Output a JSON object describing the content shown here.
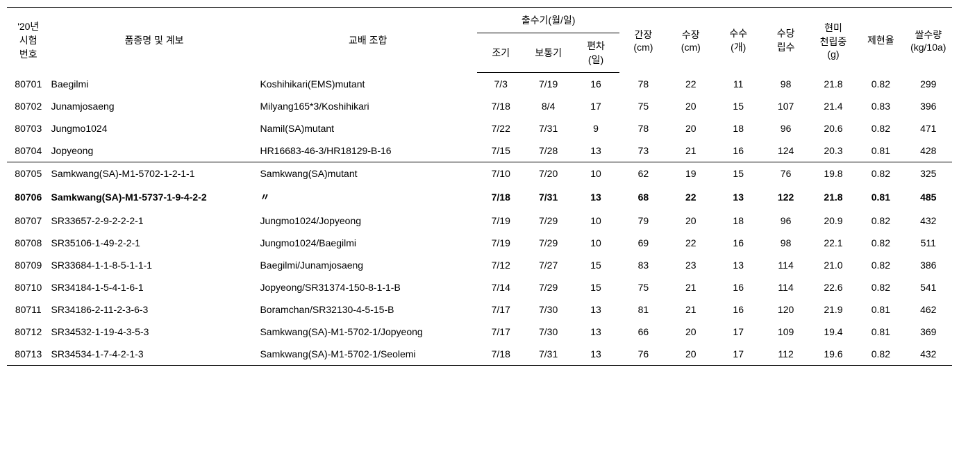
{
  "headers": {
    "trial_num": "'20년\n시험\n번호",
    "variety_name": "품종명 및 계보",
    "cross_combination": "교배 조합",
    "heading_date": "출수기(월/일)",
    "early": "조기",
    "normal": "보통기",
    "deviation": "편차\n(일)",
    "culm_length": "간장\n(cm)",
    "panicle_length": "수장\n(cm)",
    "panicle_num": "수수\n(개)",
    "grain_per_panicle": "수당\n립수",
    "brown_rice_weight": "현미\n천립중\n(g)",
    "milling_ratio": "제현율",
    "rice_yield": "쌀수량\n(kg/10a)"
  },
  "rows": [
    {
      "num": "80701",
      "name": "Baegilmi",
      "cross": "Koshihikari(EMS)mutant",
      "early": "7/3",
      "normal": "7/19",
      "dev": "16",
      "culm": "78",
      "plen": "22",
      "pnum": "11",
      "gpp": "98",
      "brw": "21.8",
      "mill": "0.82",
      "yield": "299",
      "bold": false,
      "section_end": false
    },
    {
      "num": "80702",
      "name": "Junamjosaeng",
      "cross": "Milyang165*3/Koshihikari",
      "early": "7/18",
      "normal": "8/4",
      "dev": "17",
      "culm": "75",
      "plen": "20",
      "pnum": "15",
      "gpp": "107",
      "brw": "21.4",
      "mill": "0.83",
      "yield": "396",
      "bold": false,
      "section_end": false
    },
    {
      "num": "80703",
      "name": "Jungmo1024",
      "cross": "Namil(SA)mutant",
      "early": "7/22",
      "normal": "7/31",
      "dev": "9",
      "culm": "78",
      "plen": "20",
      "pnum": "18",
      "gpp": "96",
      "brw": "20.6",
      "mill": "0.82",
      "yield": "471",
      "bold": false,
      "section_end": false
    },
    {
      "num": "80704",
      "name": "Jopyeong",
      "cross": "HR16683-46-3/HR18129-B-16",
      "early": "7/15",
      "normal": "7/28",
      "dev": "13",
      "culm": "73",
      "plen": "21",
      "pnum": "16",
      "gpp": "124",
      "brw": "20.3",
      "mill": "0.81",
      "yield": "428",
      "bold": false,
      "section_end": true
    },
    {
      "num": "80705",
      "name": "Samkwang(SA)-M1-5702-1-2-1-1",
      "cross": "Samkwang(SA)mutant",
      "early": "7/10",
      "normal": "7/20",
      "dev": "10",
      "culm": "62",
      "plen": "19",
      "pnum": "15",
      "gpp": "76",
      "brw": "19.8",
      "mill": "0.82",
      "yield": "325",
      "bold": false,
      "section_end": false
    },
    {
      "num": "80706",
      "name": "Samkwang(SA)-M1-5737-1-9-4-2-2",
      "cross": "〃",
      "early": "7/18",
      "normal": "7/31",
      "dev": "13",
      "culm": "68",
      "plen": "22",
      "pnum": "13",
      "gpp": "122",
      "brw": "21.8",
      "mill": "0.81",
      "yield": "485",
      "bold": true,
      "section_end": false
    },
    {
      "num": "80707",
      "name": "SR33657-2-9-2-2-2-1",
      "cross": "Jungmo1024/Jopyeong",
      "early": "7/19",
      "normal": "7/29",
      "dev": "10",
      "culm": "79",
      "plen": "20",
      "pnum": "18",
      "gpp": "96",
      "brw": "20.9",
      "mill": "0.82",
      "yield": "432",
      "bold": false,
      "section_end": false
    },
    {
      "num": "80708",
      "name": "SR35106-1-49-2-2-1",
      "cross": "Jungmo1024/Baegilmi",
      "early": "7/19",
      "normal": "7/29",
      "dev": "10",
      "culm": "69",
      "plen": "22",
      "pnum": "16",
      "gpp": "98",
      "brw": "22.1",
      "mill": "0.82",
      "yield": "511",
      "bold": false,
      "section_end": false
    },
    {
      "num": "80709",
      "name": "SR33684-1-1-8-5-1-1-1",
      "cross": "Baegilmi/Junamjosaeng",
      "early": "7/12",
      "normal": "7/27",
      "dev": "15",
      "culm": "83",
      "plen": "23",
      "pnum": "13",
      "gpp": "114",
      "brw": "21.0",
      "mill": "0.82",
      "yield": "386",
      "bold": false,
      "section_end": false
    },
    {
      "num": "80710",
      "name": "SR34184-1-5-4-1-6-1",
      "cross": "Jopyeong/SR31374-150-8-1-1-B",
      "early": "7/14",
      "normal": "7/29",
      "dev": "15",
      "culm": "75",
      "plen": "21",
      "pnum": "16",
      "gpp": "114",
      "brw": "22.6",
      "mill": "0.82",
      "yield": "541",
      "bold": false,
      "section_end": false
    },
    {
      "num": "80711",
      "name": "SR34186-2-11-2-3-6-3",
      "cross": "Boramchan/SR32130-4-5-15-B",
      "early": "7/17",
      "normal": "7/30",
      "dev": "13",
      "culm": "81",
      "plen": "21",
      "pnum": "16",
      "gpp": "120",
      "brw": "21.9",
      "mill": "0.81",
      "yield": "462",
      "bold": false,
      "section_end": false
    },
    {
      "num": "80712",
      "name": "SR34532-1-19-4-3-5-3",
      "cross": "Samkwang(SA)-M1-5702-1/Jopyeong",
      "early": "7/17",
      "normal": "7/30",
      "dev": "13",
      "culm": "66",
      "plen": "20",
      "pnum": "17",
      "gpp": "109",
      "brw": "19.4",
      "mill": "0.81",
      "yield": "369",
      "bold": false,
      "section_end": false
    },
    {
      "num": "80713",
      "name": "SR34534-1-7-4-2-1-3",
      "cross": "Samkwang(SA)-M1-5702-1/Seolemi",
      "early": "7/18",
      "normal": "7/31",
      "dev": "13",
      "culm": "76",
      "plen": "20",
      "pnum": "17",
      "gpp": "112",
      "brw": "19.6",
      "mill": "0.82",
      "yield": "432",
      "bold": false,
      "section_end": false
    }
  ]
}
